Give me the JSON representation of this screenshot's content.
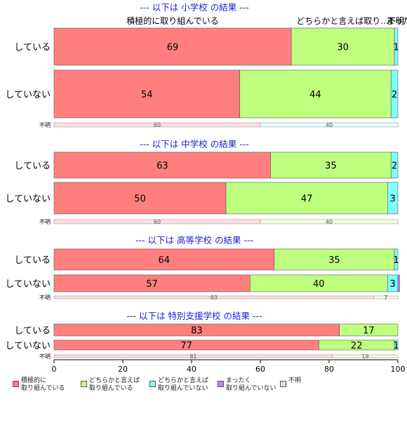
{
  "chart_data": {
    "type": "bar",
    "orientation": "horizontal",
    "stacked": true,
    "xlim": [
      0,
      100
    ],
    "x_ticks": [
      "0",
      "20",
      "40",
      "60",
      "80",
      "100"
    ],
    "category_names": [
      "積極的に\n取り組んでいる",
      "どちらかと言えば\n取り組んでいる",
      "どちらかと言えば\n取り組んでいない",
      "まったく\n取り組んでいない",
      "不明"
    ],
    "colors": [
      "#FF7F7F",
      "#BFFF7F",
      "#7FFFFF",
      "#BF7FFF",
      "#E0E0E0"
    ],
    "top_labels": [
      "積極的に取り組んでいる",
      "どちらかと言えば取り...",
      "不明",
      "まった..."
    ],
    "panels": [
      {
        "title": "--- 以下は 小学校 の結果 ---",
        "rows": [
          {
            "label": "している",
            "values": [
              69,
              30,
              1,
              0,
              0
            ]
          },
          {
            "label": "していない",
            "values": [
              54,
              44,
              2,
              0,
              0
            ]
          }
        ],
        "unknown": {
          "label": "不明",
          "values": [
            60,
            40
          ],
          "colors": [
            "#FFE0E0",
            "#E0FFFF"
          ]
        }
      },
      {
        "title": "--- 以下は 中学校 の結果 ---",
        "rows": [
          {
            "label": "している",
            "values": [
              63,
              35,
              2,
              0,
              0
            ]
          },
          {
            "label": "していない",
            "values": [
              50,
              47,
              3,
              0,
              0
            ]
          }
        ],
        "unknown": {
          "label": "不明",
          "values": [
            60,
            40
          ],
          "colors": [
            "#FFE0E0",
            "#F0FFE0"
          ]
        }
      },
      {
        "title": "--- 以下は 高等学校 の結果 ---",
        "rows": [
          {
            "label": "している",
            "values": [
              64,
              35,
              1,
              0,
              0
            ]
          },
          {
            "label": "していない",
            "values": [
              57,
              40,
              3,
              0.5,
              0
            ]
          }
        ],
        "unknown": {
          "label": "不明",
          "values": [
            93,
            7
          ],
          "colors": [
            "#FFE0E0",
            "#F0FFE0"
          ]
        }
      },
      {
        "title": "--- 以下は 特別支援学校 の結果 ---",
        "rows": [
          {
            "label": "している",
            "values": [
              83,
              17,
              0,
              0,
              0
            ]
          },
          {
            "label": "していない",
            "values": [
              77,
              22,
              1,
              0,
              0
            ]
          }
        ],
        "unknown": {
          "label": "不明",
          "values": [
            81,
            19
          ],
          "colors": [
            "#FFE0E0",
            "#F0FFE0"
          ]
        }
      }
    ]
  }
}
